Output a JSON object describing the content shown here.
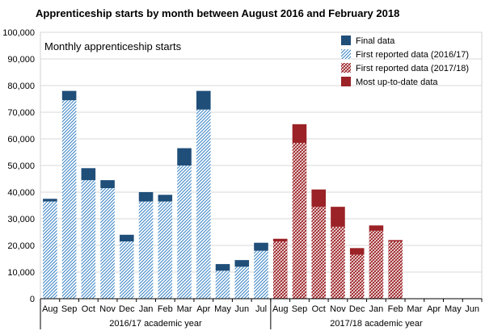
{
  "chart_data": {
    "type": "bar",
    "stacked": true,
    "title": "Apprenticeship starts by month between August 2016 and February 2018",
    "subtitle": "Monthly apprenticeship starts",
    "ylim": [
      0,
      100000
    ],
    "yticks": [
      "0",
      "10,000",
      "20,000",
      "30,000",
      "40,000",
      "50,000",
      "60,000",
      "70,000",
      "80,000",
      "90,000",
      "100,000"
    ],
    "ytick_values": [
      0,
      10000,
      20000,
      30000,
      40000,
      50000,
      60000,
      70000,
      80000,
      90000,
      100000
    ],
    "categories": [
      "Aug",
      "Sep",
      "Oct",
      "Nov",
      "Dec",
      "Jan",
      "Feb",
      "Mar",
      "Apr",
      "May",
      "Jun",
      "Jul",
      "Aug",
      "Sep",
      "Oct",
      "Nov",
      "Dec",
      "Jan",
      "Feb",
      "Mar",
      "Apr",
      "May",
      "Jun"
    ],
    "academic_years": [
      {
        "label": "2016/17 academic year",
        "start": 0,
        "end": 11
      },
      {
        "label": "2017/18 academic year",
        "start": 12,
        "end": 22
      }
    ],
    "series": [
      {
        "name": "First reported data (2016/17)",
        "style": "blue-hatch",
        "color": "#2a6496",
        "values": [
          36500,
          74500,
          44500,
          41500,
          21500,
          36500,
          36500,
          50000,
          71000,
          10500,
          12000,
          18000,
          null,
          null,
          null,
          null,
          null,
          null,
          null,
          null,
          null,
          null,
          null
        ]
      },
      {
        "name": "Final data",
        "style": "blue-solid",
        "color": "#1f4e79",
        "values": [
          1000,
          3500,
          4500,
          3000,
          2500,
          3500,
          2500,
          6500,
          7000,
          2500,
          2500,
          3000,
          null,
          null,
          null,
          null,
          null,
          null,
          null,
          null,
          null,
          null,
          null
        ]
      },
      {
        "name": "First reported data (2017/18)",
        "style": "red-hatch",
        "color": "#9b2226",
        "values": [
          null,
          null,
          null,
          null,
          null,
          null,
          null,
          null,
          null,
          null,
          null,
          null,
          21500,
          58500,
          34500,
          27000,
          16500,
          25500,
          21500,
          null,
          null,
          null,
          null
        ]
      },
      {
        "name": "Most up-to-date data",
        "style": "red-solid",
        "color": "#9b2226",
        "values": [
          null,
          null,
          null,
          null,
          null,
          null,
          null,
          null,
          null,
          null,
          null,
          null,
          1000,
          7000,
          6500,
          7500,
          2500,
          2000,
          500,
          null,
          null,
          null,
          null
        ]
      }
    ],
    "legend": [
      {
        "label": "Final data",
        "style": "blue-solid"
      },
      {
        "label": "First reported data (2016/17)",
        "style": "blue-hatch"
      },
      {
        "label": "First reported data (2017/18)",
        "style": "red-hatch"
      },
      {
        "label": "Most up-to-date data",
        "style": "red-solid"
      }
    ],
    "legend_position": "top-right"
  }
}
